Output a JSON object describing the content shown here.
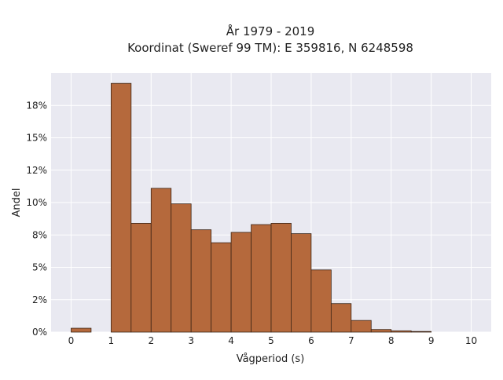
{
  "chart_data": {
    "type": "bar",
    "title_line1": "År 1979 - 2019",
    "title_line2": "Koordinat (Sweref 99 TM): E 359816, N 6248598",
    "xlabel": "Vågperiod (s)",
    "ylabel": "Andel",
    "bin_width": 0.5,
    "bin_starts": [
      0,
      0.5,
      1,
      1.5,
      2,
      2.5,
      3,
      3.5,
      4,
      4.5,
      5,
      5.5,
      6,
      6.5,
      7,
      7.5,
      8,
      8.5,
      9,
      9.5
    ],
    "values": [
      0.3,
      0,
      19.2,
      8.4,
      11.1,
      9.9,
      7.9,
      6.9,
      7.7,
      8.3,
      8.4,
      7.6,
      4.8,
      2.2,
      0.9,
      0.2,
      0.1,
      0.05,
      0,
      0
    ],
    "value_unit": "%",
    "xlim": [
      -0.5,
      10.5
    ],
    "ylim": [
      0,
      20
    ],
    "x_ticks": [
      "0",
      "1",
      "2",
      "3",
      "4",
      "5",
      "6",
      "7",
      "8",
      "9",
      "10"
    ],
    "y_ticks": [
      {
        "value": 0,
        "label": "0%"
      },
      {
        "value": 2.5,
        "label": "2%"
      },
      {
        "value": 5,
        "label": "5%"
      },
      {
        "value": 7.5,
        "label": "8%"
      },
      {
        "value": 10,
        "label": "10%"
      },
      {
        "value": 12.5,
        "label": "12%"
      },
      {
        "value": 15,
        "label": "15%"
      },
      {
        "value": 17.5,
        "label": "18%"
      }
    ],
    "grid": true,
    "colors": {
      "bar_fill": "#b5693c",
      "bar_stroke": "#3d2516",
      "plot_background": "#e9e9f1",
      "grid": "#ffffff"
    }
  }
}
